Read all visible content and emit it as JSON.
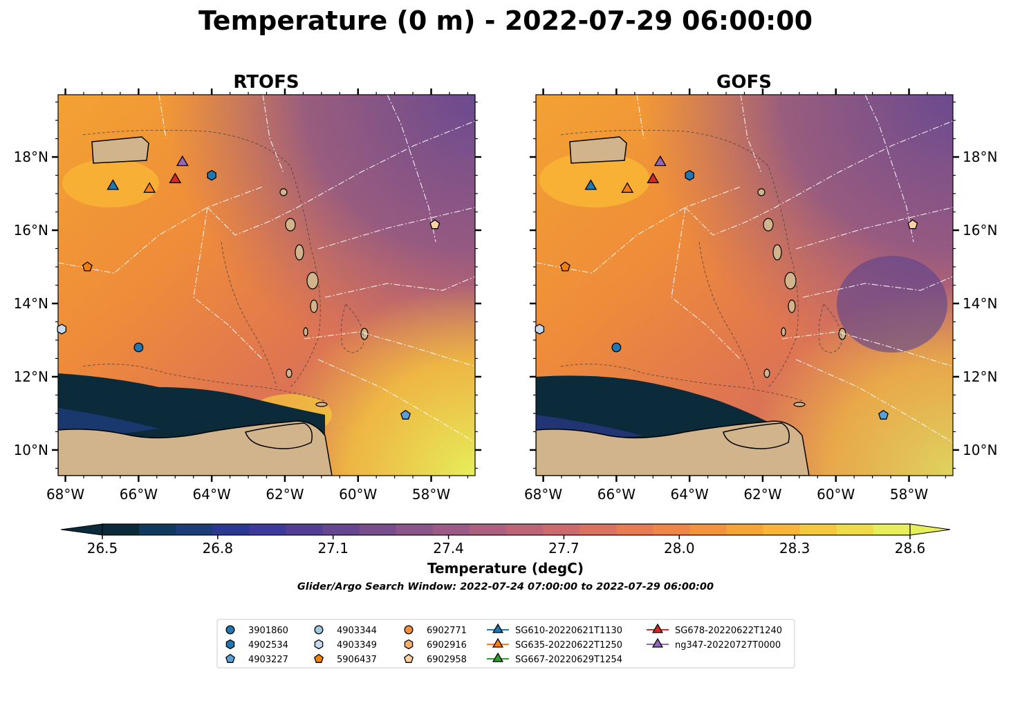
{
  "title": "Temperature (0 m) - 2022-07-29 06:00:00",
  "search_window": "Glider/Argo Search Window: 2022-07-24 07:00:00 to 2022-07-29 06:00:00",
  "colorbar": {
    "label": "Temperature (degC)",
    "ticks": [
      "26.5",
      "26.8",
      "27.1",
      "27.4",
      "27.7",
      "28.0",
      "28.3",
      "28.6"
    ],
    "tick_values": [
      26.5,
      26.8,
      27.1,
      27.4,
      27.7,
      28.0,
      28.3,
      28.6
    ],
    "range": [
      26.5,
      28.6
    ],
    "colors": [
      "#0b2a3a",
      "#0f3a5e",
      "#1d3c7a",
      "#2b3a8e",
      "#3e3a99",
      "#523f95",
      "#65468f",
      "#784d8c",
      "#8a5589",
      "#9b5b86",
      "#ad6180",
      "#bd6578",
      "#cc6b6e",
      "#da7262",
      "#e67b54",
      "#ef8547",
      "#f5933b",
      "#f8a434",
      "#f9b535",
      "#f5c93c",
      "#eedb48",
      "#e6ef5a"
    ],
    "extend": "both"
  },
  "chart_data": [
    {
      "type": "map",
      "title": "RTOFS",
      "variable": "sea surface temperature",
      "x_ticks": [
        "68°W",
        "66°W",
        "64°W",
        "62°W",
        "60°W",
        "58°W"
      ],
      "x_tick_values": [
        -68,
        -66,
        -64,
        -62,
        -60,
        -58
      ],
      "y_ticks": [
        "18°N",
        "16°N",
        "14°N",
        "12°N",
        "10°N"
      ],
      "y_tick_values": [
        18,
        16,
        14,
        12,
        10
      ],
      "xlim": [
        -68.2,
        -56.8
      ],
      "ylim": [
        9.3,
        19.7
      ],
      "y_axis_side": "left"
    },
    {
      "type": "map",
      "title": "GOFS",
      "variable": "sea surface temperature",
      "x_ticks": [
        "68°W",
        "66°W",
        "64°W",
        "62°W",
        "60°W",
        "58°W"
      ],
      "x_tick_values": [
        -68,
        -66,
        -64,
        -62,
        -60,
        -58
      ],
      "y_ticks": [
        "18°N",
        "16°N",
        "14°N",
        "12°N",
        "10°N"
      ],
      "y_tick_values": [
        18,
        16,
        14,
        12,
        10
      ],
      "xlim": [
        -68.2,
        -56.8
      ],
      "ylim": [
        9.3,
        19.7
      ],
      "y_axis_side": "right"
    }
  ],
  "legend": {
    "placement": "bottom-center",
    "entries": [
      {
        "label": "3901860",
        "marker": "circle",
        "color": "#1f77b4"
      },
      {
        "label": "4902534",
        "marker": "hexagon",
        "color": "#1f77b4"
      },
      {
        "label": "4903227",
        "marker": "pentagon",
        "color": "#5aa0d8"
      },
      {
        "label": "4903344",
        "marker": "circle",
        "color": "#9ecae1"
      },
      {
        "label": "4903349",
        "marker": "hexagon",
        "color": "#c6dbef"
      },
      {
        "label": "5906437",
        "marker": "pentagon",
        "color": "#f07f0c"
      },
      {
        "label": "6902771",
        "marker": "circle",
        "color": "#fd8d3c"
      },
      {
        "label": "6902916",
        "marker": "hexagon",
        "color": "#fdae6b"
      },
      {
        "label": "6902958",
        "marker": "pentagon",
        "color": "#fdd0a2"
      },
      {
        "label": "SG610-20220621T1130",
        "marker": "triangle-line",
        "color": "#1f77b4"
      },
      {
        "label": "SG635-20220622T1250",
        "marker": "triangle-line",
        "color": "#ff7f0e"
      },
      {
        "label": "SG667-20220629T1254",
        "marker": "triangle-line",
        "color": "#2ca02c"
      },
      {
        "label": "SG678-20220622T1240",
        "marker": "triangle-line",
        "color": "#d62728"
      },
      {
        "label": "ng347-20220727T0000",
        "marker": "triangle-line",
        "color": "#9467bd"
      }
    ]
  },
  "observations": [
    {
      "id": "3901860",
      "lon": -66.0,
      "lat": 12.8,
      "marker": "circle",
      "color": "#1f77b4"
    },
    {
      "id": "4902534",
      "lon": -64.0,
      "lat": 17.5,
      "marker": "hexagon",
      "color": "#1f77b4"
    },
    {
      "id": "4903227",
      "lon": -58.7,
      "lat": 10.95,
      "marker": "pentagon",
      "color": "#5aa0d8"
    },
    {
      "id": "4903349",
      "lon": -68.1,
      "lat": 13.3,
      "marker": "hexagon",
      "color": "#c6dbef"
    },
    {
      "id": "5906437",
      "lon": -67.4,
      "lat": 15.0,
      "marker": "pentagon",
      "color": "#f07f0c"
    },
    {
      "id": "6902958",
      "lon": -57.9,
      "lat": 16.15,
      "marker": "pentagon",
      "color": "#fdd0a2"
    },
    {
      "id": "SG610-20220621T1130",
      "lon": -66.7,
      "lat": 17.2,
      "marker": "triangle",
      "color": "#1f77b4"
    },
    {
      "id": "SG635-20220622T1250",
      "lon": -65.7,
      "lat": 17.12,
      "marker": "triangle",
      "color": "#ff7f0e"
    },
    {
      "id": "SG678-20220622T1240",
      "lon": -65.0,
      "lat": 17.38,
      "marker": "triangle",
      "color": "#d62728"
    },
    {
      "id": "ng347-20220727T0000",
      "lon": -64.8,
      "lat": 17.85,
      "marker": "triangle",
      "color": "#9467bd"
    }
  ]
}
